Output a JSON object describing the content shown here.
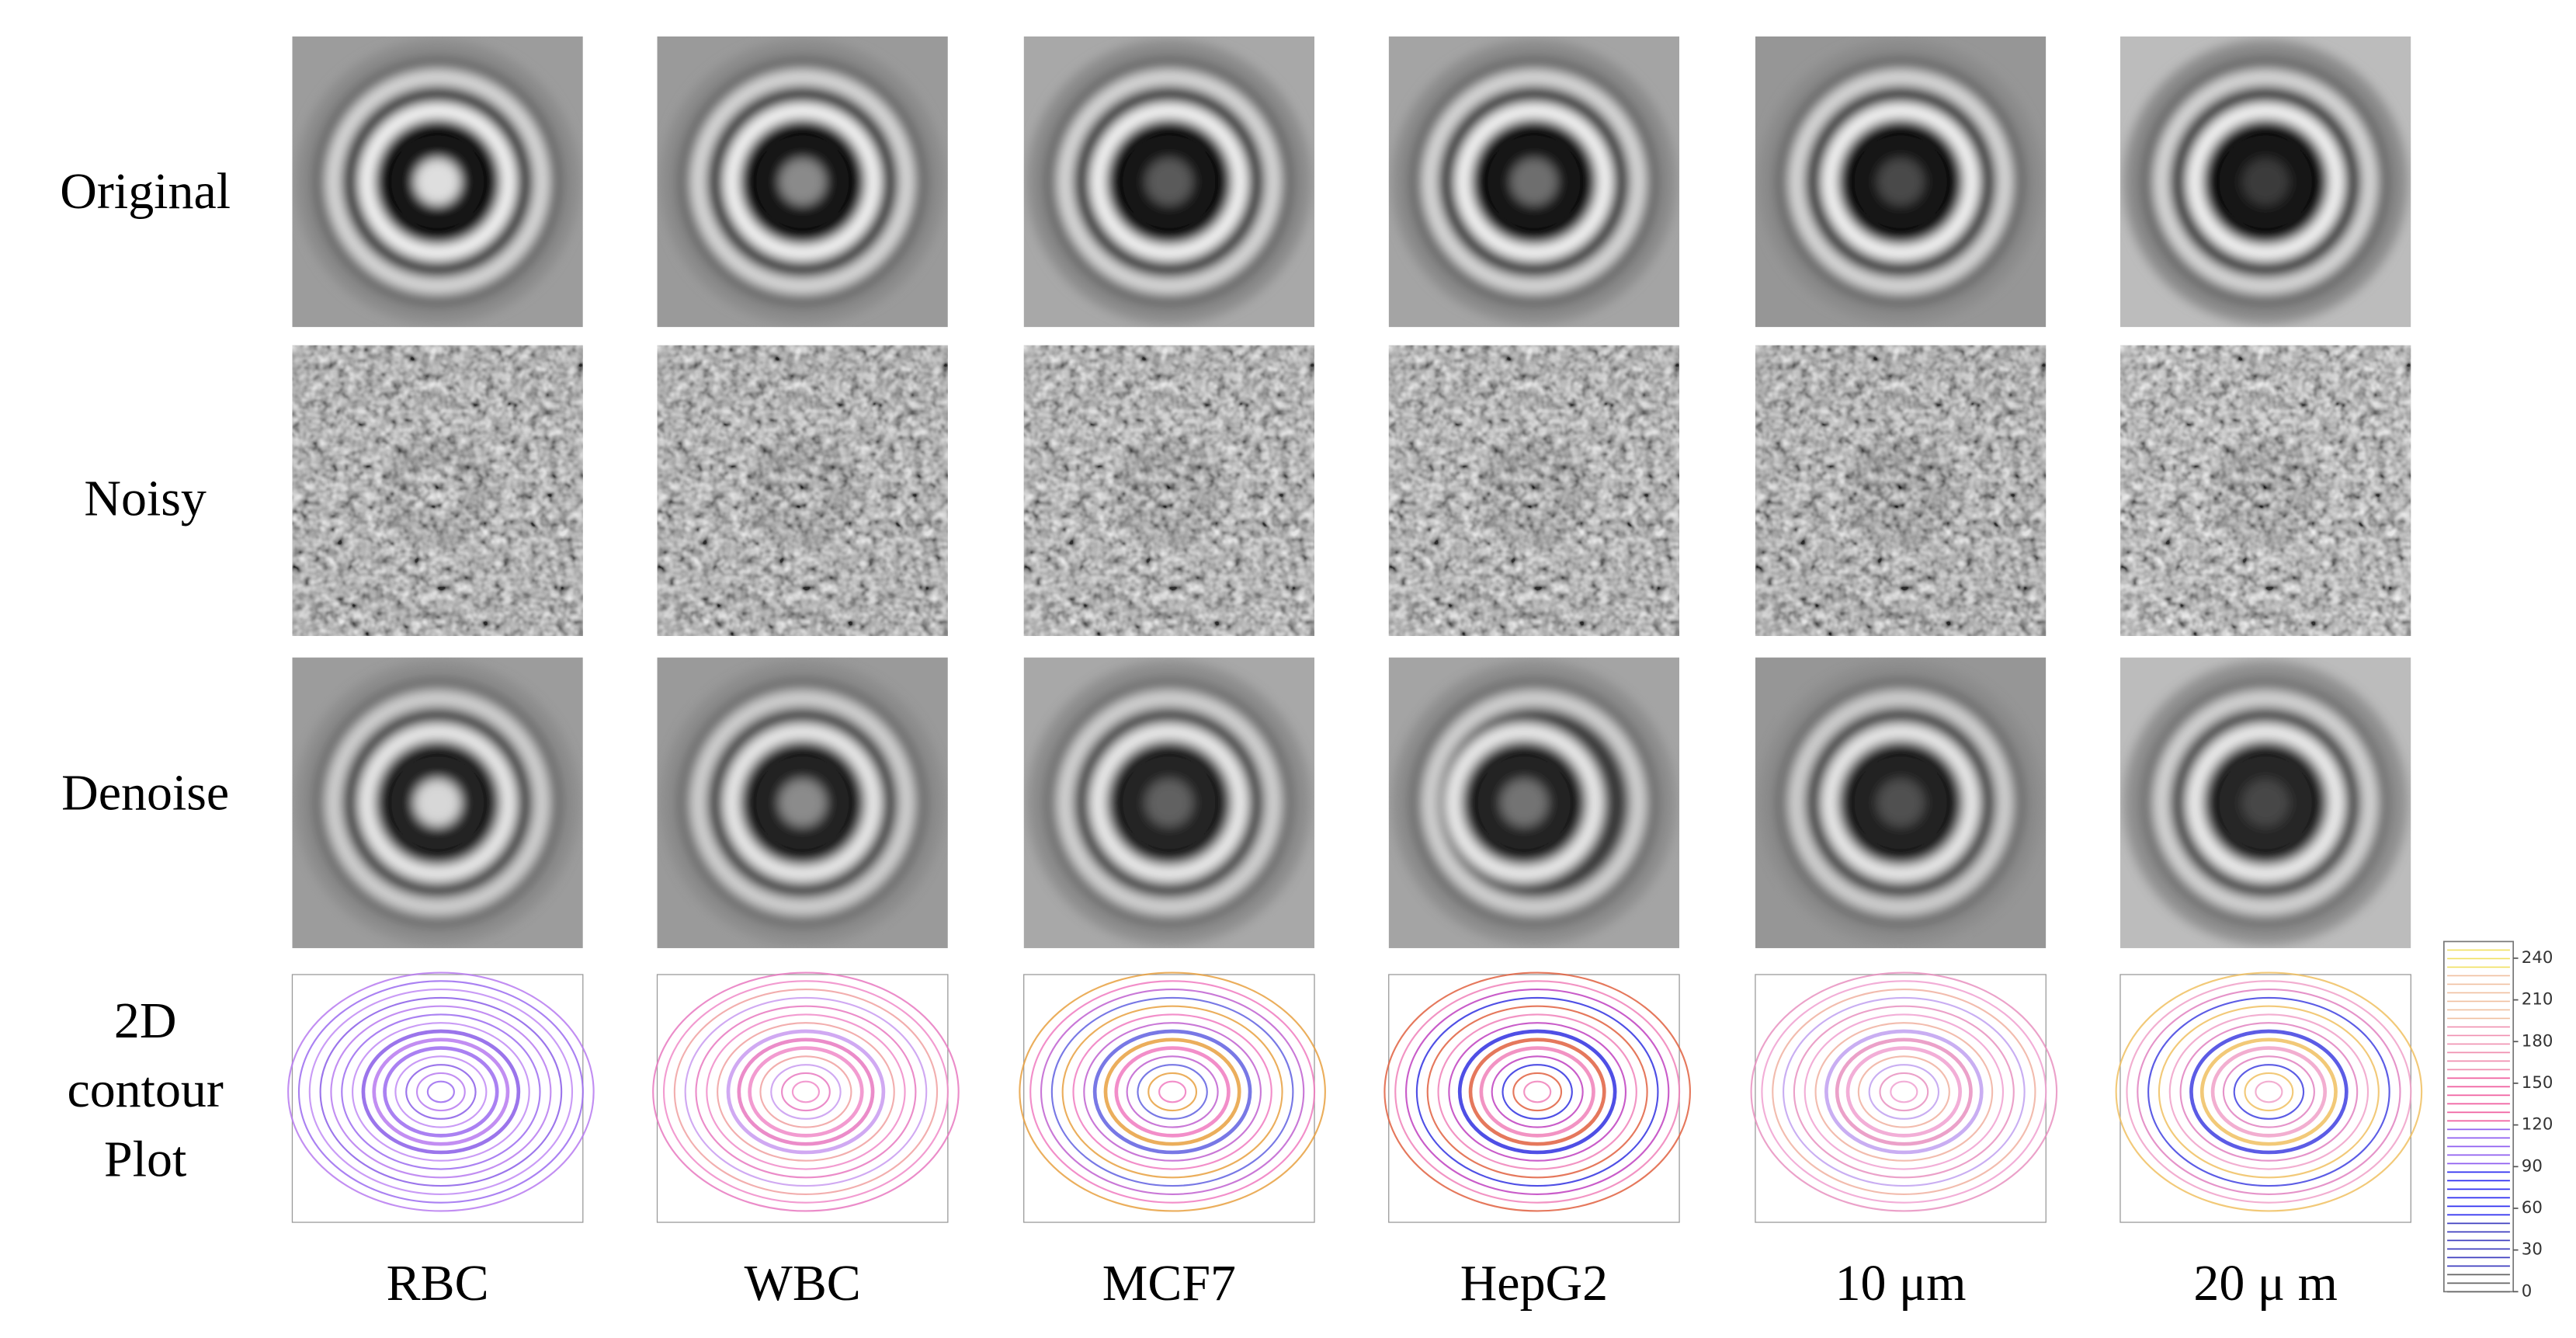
{
  "rows": [
    "Original",
    "Noisy",
    "Denoise",
    "2D contour Plot"
  ],
  "columns": [
    "RBC",
    "WBC",
    "MCF7",
    "HepG2",
    "10 μm",
    "20 μ m"
  ],
  "colorbar": {
    "range": [
      0,
      252
    ],
    "ticks": [
      0,
      30,
      60,
      90,
      120,
      150,
      180,
      210,
      240
    ]
  }
}
